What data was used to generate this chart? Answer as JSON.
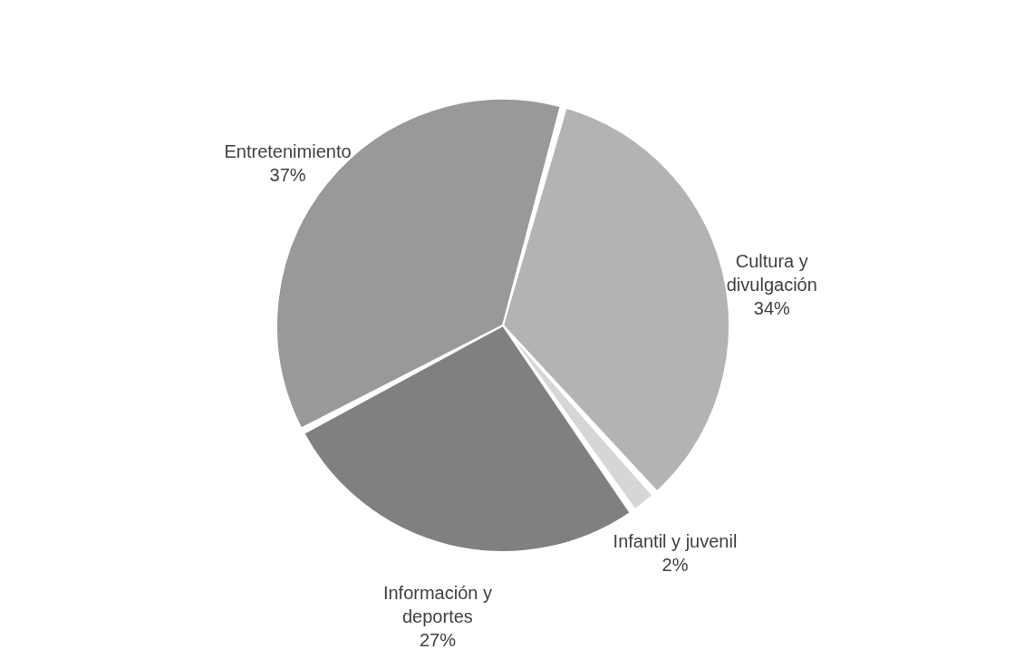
{
  "chart_data": {
    "type": "pie",
    "categories": [
      "Cultura y divulgación",
      "Infantil y juvenil",
      "Información y deportes",
      "Entretenimiento"
    ],
    "values": [
      34,
      2,
      27,
      37
    ],
    "colors": [
      "#b3b3b3",
      "#d6d6d6",
      "#808080",
      "#999999"
    ],
    "value_labels": [
      "34%",
      "2%",
      "27%",
      "37%"
    ],
    "legend": false
  }
}
